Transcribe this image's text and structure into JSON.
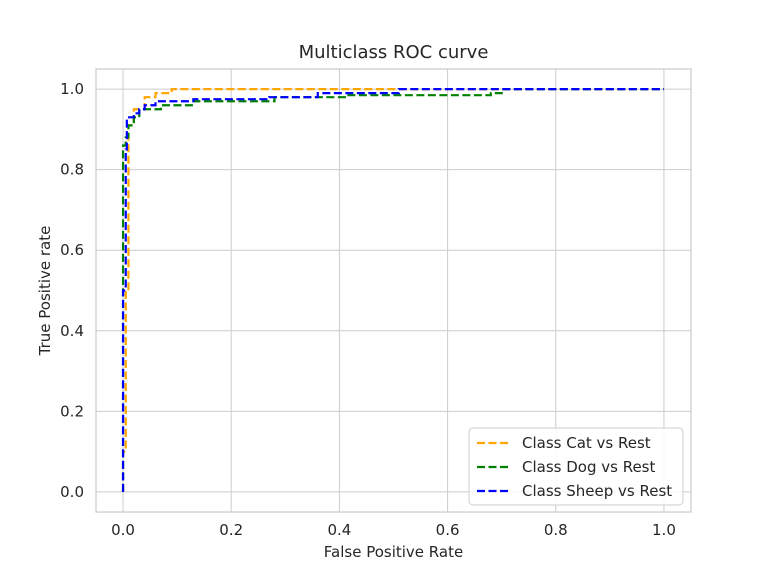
{
  "chart_data": {
    "type": "line",
    "title": "Multiclass ROC curve",
    "xlabel": "False Positive Rate",
    "ylabel": "True Positive rate",
    "xlim": [
      -0.05,
      1.05
    ],
    "ylim": [
      -0.05,
      1.05
    ],
    "xticks": [
      0.0,
      0.2,
      0.4,
      0.6,
      0.8,
      1.0
    ],
    "xtick_labels": [
      "0.0",
      "0.2",
      "0.4",
      "0.6",
      "0.8",
      "1.0"
    ],
    "yticks": [
      0.0,
      0.2,
      0.4,
      0.6,
      0.8,
      1.0
    ],
    "ytick_labels": [
      "0.0",
      "0.2",
      "0.4",
      "0.6",
      "0.8",
      "1.0"
    ],
    "grid": true,
    "legend_position": "bottom-right",
    "series": [
      {
        "name": "Class Cat vs Rest",
        "color": "#ffa500",
        "points": [
          [
            0.0,
            0.0
          ],
          [
            0.0,
            0.1
          ],
          [
            0.005,
            0.1
          ],
          [
            0.005,
            0.5
          ],
          [
            0.01,
            0.5
          ],
          [
            0.01,
            0.91
          ],
          [
            0.02,
            0.91
          ],
          [
            0.02,
            0.95
          ],
          [
            0.04,
            0.95
          ],
          [
            0.04,
            0.98
          ],
          [
            0.06,
            0.98
          ],
          [
            0.06,
            0.99
          ],
          [
            0.09,
            0.99
          ],
          [
            0.09,
            1.0
          ],
          [
            0.5,
            1.0
          ],
          [
            1.0,
            1.0
          ]
        ]
      },
      {
        "name": "Class Dog vs Rest",
        "color": "#008000",
        "points": [
          [
            0.0,
            0.0
          ],
          [
            0.0,
            0.86
          ],
          [
            0.005,
            0.86
          ],
          [
            0.005,
            0.88
          ],
          [
            0.01,
            0.88
          ],
          [
            0.01,
            0.91
          ],
          [
            0.02,
            0.91
          ],
          [
            0.02,
            0.93
          ],
          [
            0.03,
            0.93
          ],
          [
            0.03,
            0.95
          ],
          [
            0.07,
            0.95
          ],
          [
            0.07,
            0.96
          ],
          [
            0.13,
            0.96
          ],
          [
            0.13,
            0.97
          ],
          [
            0.28,
            0.97
          ],
          [
            0.28,
            0.98
          ],
          [
            0.41,
            0.98
          ],
          [
            0.41,
            0.985
          ],
          [
            0.68,
            0.985
          ],
          [
            0.68,
            0.99
          ],
          [
            0.7,
            0.99
          ],
          [
            0.7,
            1.0
          ],
          [
            1.0,
            1.0
          ]
        ]
      },
      {
        "name": "Class Sheep vs Rest",
        "color": "#0000ff",
        "points": [
          [
            0.0,
            0.0
          ],
          [
            0.0,
            0.5
          ],
          [
            0.005,
            0.5
          ],
          [
            0.005,
            0.85
          ],
          [
            0.007,
            0.85
          ],
          [
            0.007,
            0.93
          ],
          [
            0.02,
            0.93
          ],
          [
            0.02,
            0.94
          ],
          [
            0.03,
            0.94
          ],
          [
            0.03,
            0.95
          ],
          [
            0.04,
            0.95
          ],
          [
            0.04,
            0.96
          ],
          [
            0.06,
            0.96
          ],
          [
            0.06,
            0.97
          ],
          [
            0.13,
            0.97
          ],
          [
            0.13,
            0.975
          ],
          [
            0.27,
            0.975
          ],
          [
            0.27,
            0.98
          ],
          [
            0.36,
            0.98
          ],
          [
            0.36,
            0.99
          ],
          [
            0.51,
            0.99
          ],
          [
            0.51,
            1.0
          ],
          [
            1.0,
            1.0
          ]
        ]
      }
    ]
  }
}
